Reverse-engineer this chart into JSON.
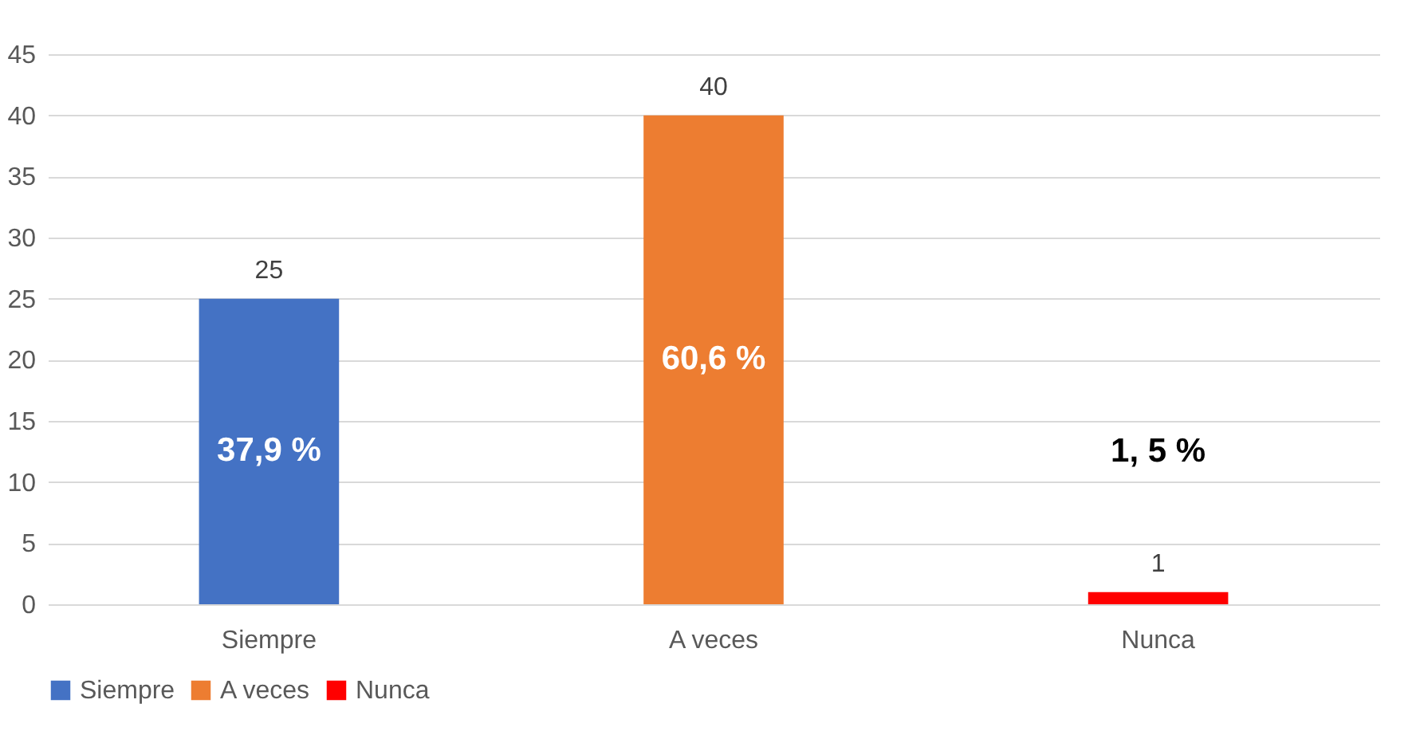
{
  "chart_data": {
    "type": "bar",
    "categories": [
      "Siempre",
      "A veces",
      "Nunca"
    ],
    "series": [
      {
        "name": "Siempre",
        "color": "#4472c4",
        "values": [
          25,
          null,
          null
        ]
      },
      {
        "name": "A veces",
        "color": "#ed7d31",
        "values": [
          null,
          40,
          null
        ]
      },
      {
        "name": "Nunca",
        "color": "#ff0000",
        "values": [
          null,
          null,
          1
        ]
      }
    ],
    "ylim": [
      0,
      45
    ],
    "yticks": [
      0,
      5,
      10,
      15,
      20,
      25,
      30,
      35,
      40,
      45
    ],
    "grid": "y",
    "legend": "bottom",
    "data_labels": true,
    "annotations": [
      "37,9 %",
      "60,6 %",
      "1, 5 %"
    ]
  }
}
